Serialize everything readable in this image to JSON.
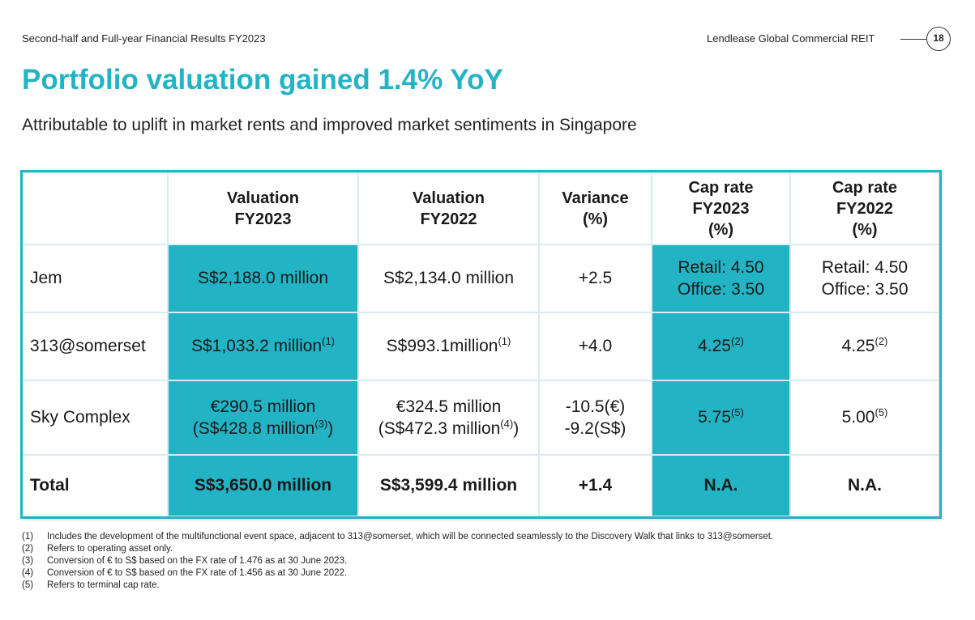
{
  "header": {
    "left": "Second-half and Full-year Financial Results FY2023",
    "right": "Lendlease Global Commercial REIT",
    "page": "18"
  },
  "title": "Portfolio valuation gained 1.4% YoY",
  "subtitle": "Attributable to uplift in market rents and improved market sentiments in Singapore",
  "colors": {
    "accent": "#22b3c5",
    "grid": "#d7ecef"
  },
  "table": {
    "headers": [
      {
        "l1": "",
        "l2": "",
        "l3": ""
      },
      {
        "l1": "Valuation",
        "l2": "FY2023",
        "l3": ""
      },
      {
        "l1": "Valuation",
        "l2": "FY2022",
        "l3": ""
      },
      {
        "l1": "Variance",
        "l2": "(%)",
        "l3": ""
      },
      {
        "l1": "Cap rate",
        "l2": "FY2023",
        "l3": "(%)"
      },
      {
        "l1": "Cap rate",
        "l2": "FY2022",
        "l3": "(%)"
      }
    ],
    "rows": [
      {
        "name": "Jem",
        "val2023": {
          "l1": "S$2,188.0 million",
          "s1": "",
          "l2": "",
          "l2pre": "",
          "s2": "",
          "l2post": ""
        },
        "val2022": {
          "l1": "S$2,134.0 million",
          "s1": "",
          "l2": "",
          "l2pre": "",
          "s2": "",
          "l2post": ""
        },
        "variance": {
          "l1": "+2.5",
          "l2": ""
        },
        "cap2023": {
          "l1": "Retail: 4.50",
          "l2": "Office: 3.50",
          "s": ""
        },
        "cap2022": {
          "l1": "Retail: 4.50",
          "l2": "Office: 3.50",
          "s": ""
        }
      },
      {
        "name": "313@somerset",
        "val2023": {
          "l1": "S$1,033.2 million",
          "s1": "(1)",
          "l2": "",
          "l2pre": "",
          "s2": "",
          "l2post": ""
        },
        "val2022": {
          "l1": "S$993.1million",
          "s1": "(1)",
          "l2": "",
          "l2pre": "",
          "s2": "",
          "l2post": ""
        },
        "variance": {
          "l1": "+4.0",
          "l2": ""
        },
        "cap2023": {
          "l1": "4.25",
          "l2": "",
          "s": "(2)"
        },
        "cap2022": {
          "l1": "4.25",
          "l2": "",
          "s": "(2)"
        }
      },
      {
        "name": "Sky Complex",
        "val2023": {
          "l1": "€290.5 million",
          "s1": "",
          "l2pre": "(S$428.8 million",
          "s2": "(3)",
          "l2post": ")"
        },
        "val2022": {
          "l1": "€324.5 million",
          "s1": "",
          "l2pre": "(S$472.3 million",
          "s2": "(4)",
          "l2post": ")"
        },
        "variance": {
          "l1": "-10.5(€)",
          "l2": "-9.2(S$)"
        },
        "cap2023": {
          "l1": "5.75",
          "l2": "",
          "s": "(5)"
        },
        "cap2022": {
          "l1": "5.00",
          "l2": "",
          "s": "(5)"
        }
      }
    ],
    "total": {
      "name": "Total",
      "val2023": "S$3,650.0 million",
      "val2022": "S$3,599.4 million",
      "variance": "+1.4",
      "cap2023": "N.A.",
      "cap2022": "N.A."
    }
  },
  "footnotes": [
    {
      "num": "(1)",
      "text": "Includes the development of the multifunctional event space, adjacent to 313@somerset, which will be connected seamlessly to the Discovery Walk that links to 313@somerset."
    },
    {
      "num": "(2)",
      "text": "Refers to operating asset only."
    },
    {
      "num": "(3)",
      "text": "Conversion of € to S$ based on the FX rate of 1.476 as at 30 June 2023."
    },
    {
      "num": "(4)",
      "text": "Conversion of € to S$ based on the FX rate of 1.456 as at 30 June 2022."
    },
    {
      "num": "(5)",
      "text": "Refers to terminal cap rate."
    }
  ]
}
